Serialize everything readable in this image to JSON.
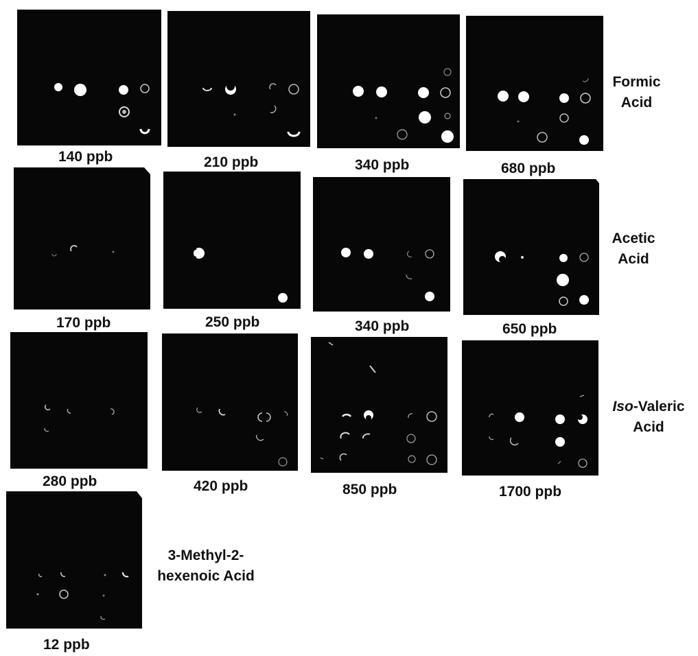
{
  "colors": {
    "background": "#ffffff",
    "panel": "#070707",
    "spot": "#ffffff",
    "text": "#111111"
  },
  "groups": [
    {
      "id": "formic",
      "label_lines": [
        "Formic",
        "Acid"
      ],
      "panels": [
        {
          "caption": "140 ppb",
          "spots": 8
        },
        {
          "caption": "210 ppb",
          "spots": 7
        },
        {
          "caption": "340 ppb",
          "spots": 9
        },
        {
          "caption": "680 ppb",
          "spots": 9
        }
      ]
    },
    {
      "id": "acetic",
      "label_lines": [
        "Acetic",
        "Acid"
      ],
      "panels": [
        {
          "caption": "170 ppb",
          "spots": 4
        },
        {
          "caption": "250 ppb",
          "spots": 2
        },
        {
          "caption": "340 ppb",
          "spots": 5
        },
        {
          "caption": "650 ppb",
          "spots": 7
        }
      ]
    },
    {
      "id": "isovaleric",
      "label_italic": "Iso",
      "label_rest": "-Valeric",
      "label_line2": "Acid",
      "panels": [
        {
          "caption": "280 ppb",
          "spots": 4
        },
        {
          "caption": "420 ppb",
          "spots": 6
        },
        {
          "caption": "850 ppb",
          "spots": 13
        },
        {
          "caption": "1700 ppb",
          "spots": 11
        }
      ]
    },
    {
      "id": "methylhexenoic",
      "label_lines": [
        "3-Methyl-2-",
        "hexenoic Acid"
      ],
      "panels": [
        {
          "caption": "12 ppb",
          "spots": 8
        }
      ]
    }
  ]
}
